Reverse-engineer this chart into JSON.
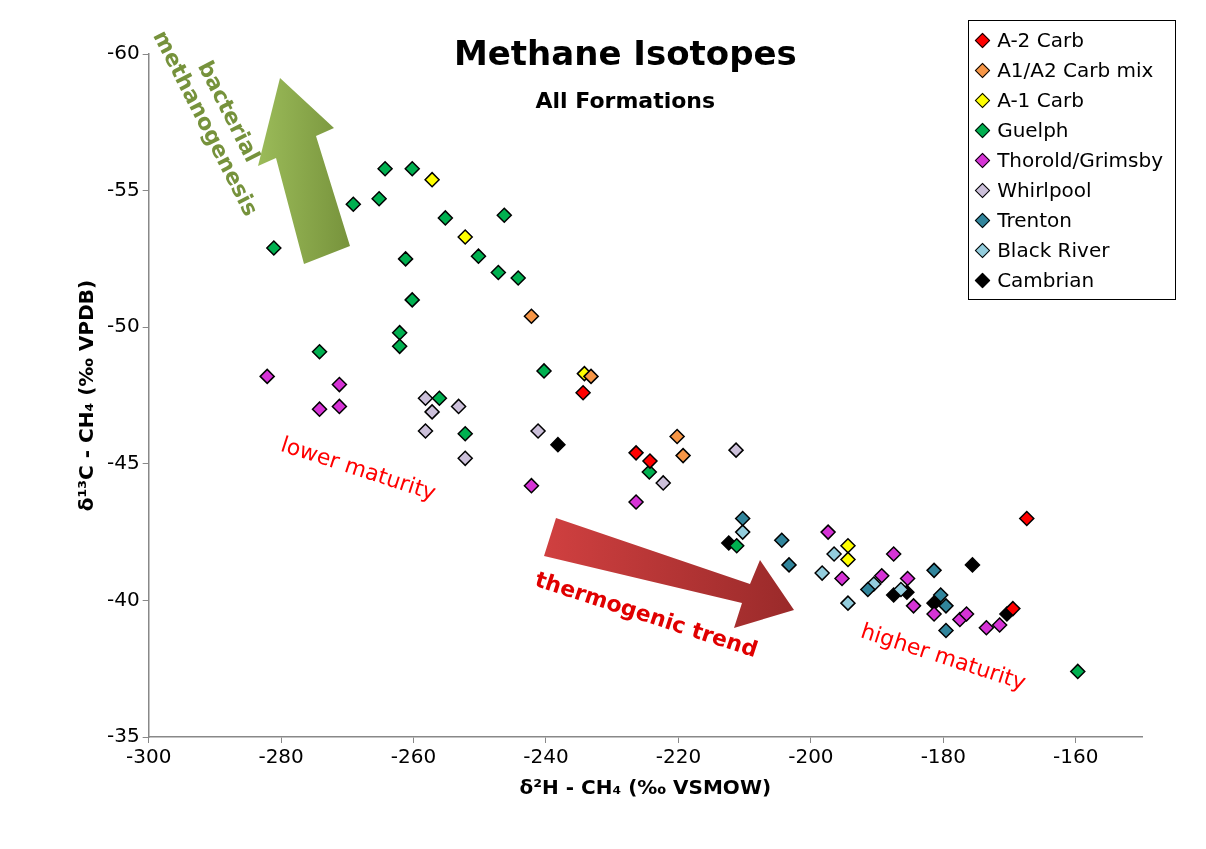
{
  "chart_data": {
    "type": "scatter",
    "title": "Methane Isotopes",
    "subtitle": "All Formations",
    "xlabel": "δ²H - CH₄ (‰ VSMOW)",
    "ylabel": "δ¹³C - CH₄ (‰ VPDB)",
    "xlim": [
      -300,
      -150
    ],
    "xticks": [
      -300,
      -280,
      -260,
      -240,
      -220,
      -200,
      -180,
      -160
    ],
    "ylim": [
      -35,
      -60
    ],
    "yticks": [
      -60,
      -55,
      -50,
      -45,
      -40,
      -35
    ],
    "legend": "top right",
    "marker": "diamond",
    "annotations": [
      "bacterial methanogenesis",
      "lower maturity",
      "thermogenic trend",
      "higher maturity"
    ],
    "series": [
      {
        "name": "A-2 Carb",
        "color": "#ff0000",
        "x": [
          -234.4,
          -226.4,
          -224.3,
          -167.4,
          -169.5
        ],
        "values": [
          -47.6,
          -45.4,
          -45.1,
          -43.0,
          -39.7
        ]
      },
      {
        "name": "A1/A2 Carb mix",
        "color": "#f79646",
        "x": [
          -242.2,
          -233.2,
          -220.2,
          -219.3
        ],
        "values": [
          -50.4,
          -48.2,
          -46.0,
          -45.3
        ]
      },
      {
        "name": "A-1 Carb",
        "color": "#ffff00",
        "x": [
          -257.2,
          -252.2,
          -234.2,
          -194.4,
          -194.4
        ],
        "values": [
          -55.4,
          -53.3,
          -48.3,
          -42.0,
          -41.5
        ]
      },
      {
        "name": "Guelph",
        "color": "#00b050",
        "x": [
          -264.3,
          -260.2,
          -269.1,
          -265.2,
          -255.2,
          -281.1,
          -261.2,
          -260.2,
          -262.1,
          -262.1,
          -274.2,
          -256.1,
          -252.2,
          -246.3,
          -250.2,
          -247.2,
          -244.2,
          -240.3,
          -224.4,
          -211.2,
          -159.7
        ],
        "values": [
          -55.8,
          -55.8,
          -54.5,
          -54.7,
          -54.0,
          -52.9,
          -52.5,
          -51.0,
          -49.8,
          -49.3,
          -49.1,
          -47.4,
          -46.1,
          -54.1,
          -52.6,
          -52.0,
          -51.8,
          -48.4,
          -44.7,
          -42.0,
          -37.4
        ]
      },
      {
        "name": "Thorold/Grimsby",
        "color": "#d633d6",
        "x": [
          -282.1,
          -271.2,
          -274.2,
          -271.2,
          -242.2,
          -226.4,
          -197.4,
          -187.5,
          -195.3,
          -189.3,
          -185.4,
          -184.5,
          -181.4,
          -177.5,
          -176.5,
          -173.5,
          -171.5
        ],
        "values": [
          -48.2,
          -47.9,
          -47.0,
          -47.1,
          -44.2,
          -43.6,
          -42.5,
          -41.7,
          -40.8,
          -40.9,
          -40.8,
          -39.8,
          -39.5,
          -39.3,
          -39.5,
          -39.0,
          -39.1
        ]
      },
      {
        "name": "Whirlpool",
        "color": "#ccc0da",
        "x": [
          -258.2,
          -257.2,
          -253.2,
          -258.2,
          -252.2,
          -241.2,
          -211.3,
          -222.3
        ],
        "values": [
          -47.4,
          -46.9,
          -47.1,
          -46.2,
          -45.2,
          -46.2,
          -45.5,
          -44.3
        ]
      },
      {
        "name": "Trenton",
        "color": "#31859c",
        "x": [
          -210.3,
          -204.4,
          -203.3,
          -191.4,
          -181.4,
          -180.4,
          -179.6,
          -179.6
        ],
        "values": [
          -43.0,
          -42.2,
          -41.3,
          -40.4,
          -41.1,
          -40.2,
          -39.8,
          -38.9
        ]
      },
      {
        "name": "Black River",
        "color": "#93cddd",
        "x": [
          -210.3,
          -196.5,
          -198.3,
          -194.4,
          -190.5,
          -186.4
        ],
        "values": [
          -42.5,
          -41.7,
          -41.0,
          -39.9,
          -40.6,
          -40.4
        ]
      },
      {
        "name": "Cambrian",
        "color": "#000000",
        "x": [
          -238.2,
          -212.4,
          -187.5,
          -185.5,
          -181.4,
          -175.6,
          -170.4
        ],
        "values": [
          -45.7,
          -42.1,
          -40.2,
          -40.3,
          -39.9,
          -41.3,
          -39.5
        ]
      }
    ]
  }
}
